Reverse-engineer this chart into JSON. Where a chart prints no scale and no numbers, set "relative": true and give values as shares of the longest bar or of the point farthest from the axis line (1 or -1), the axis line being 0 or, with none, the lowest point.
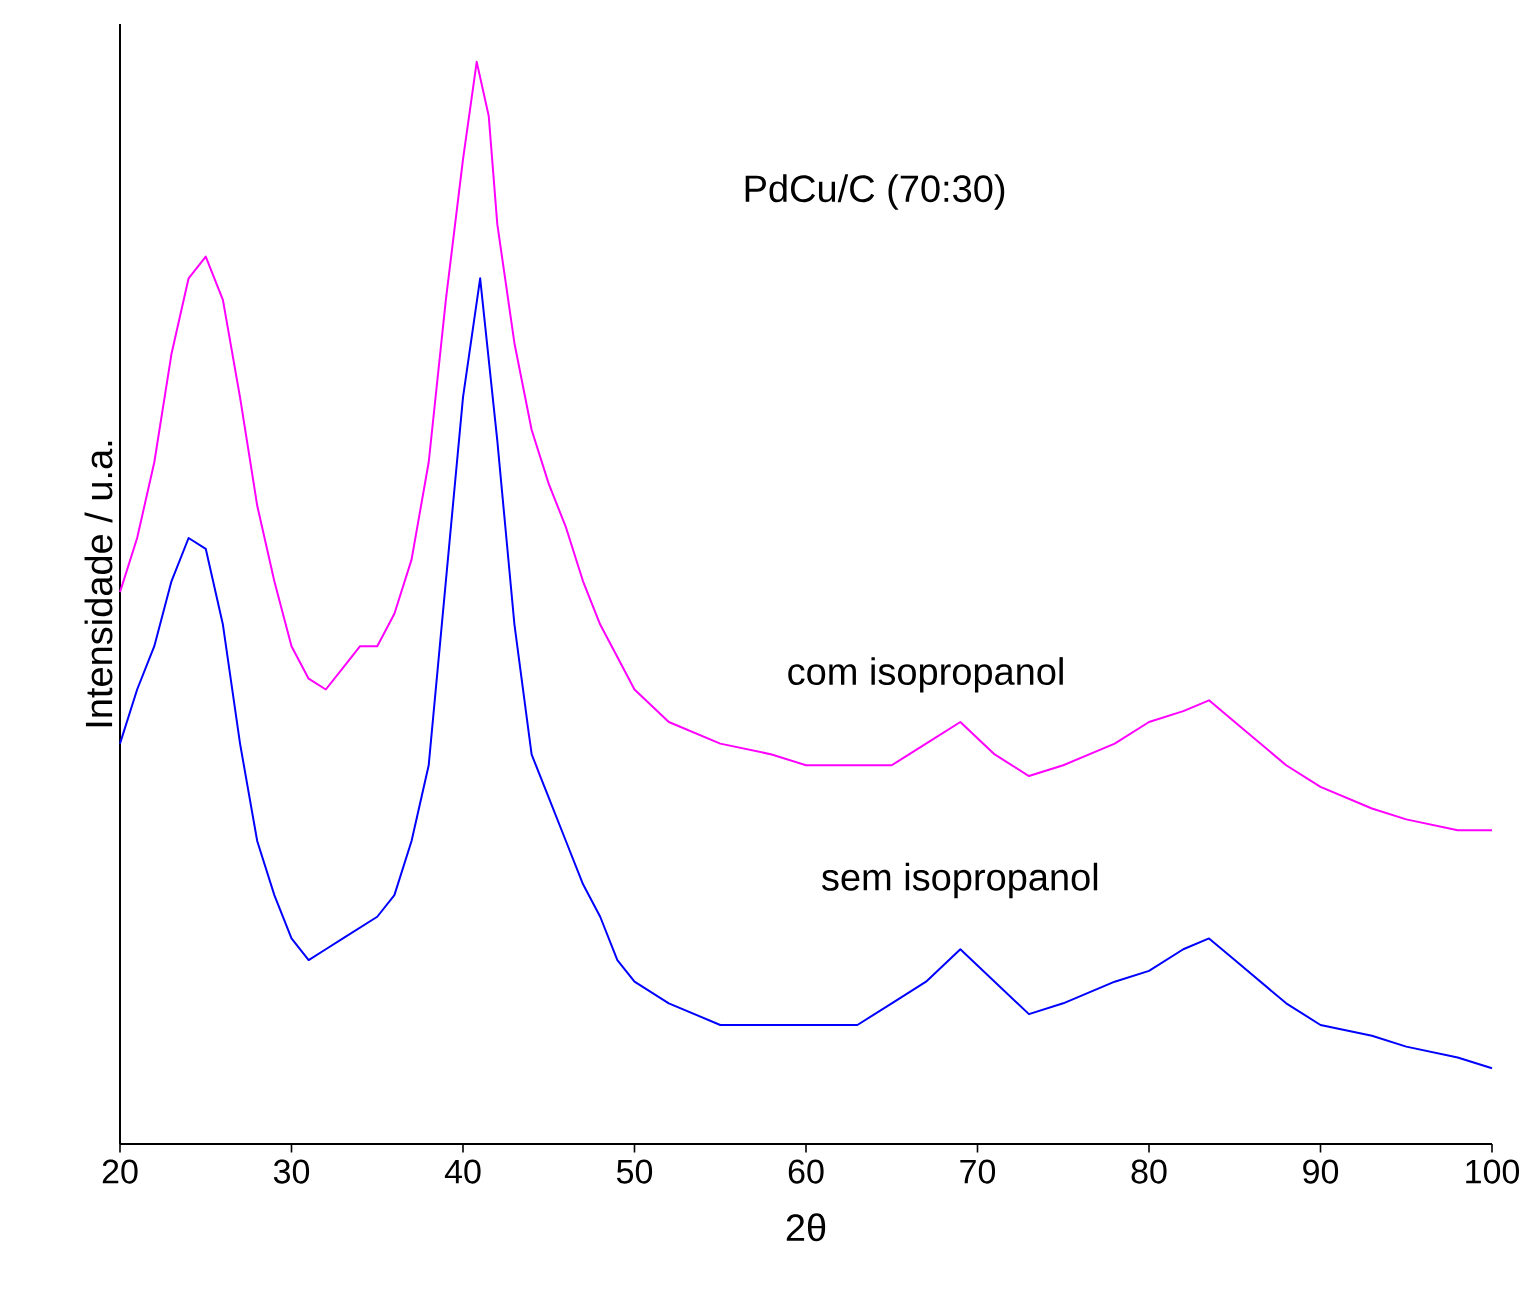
{
  "chart_data": {
    "type": "line",
    "relative": true,
    "xlabel": "2θ",
    "ylabel": "Intensidade / u.a.",
    "annotations": [
      "PdCu/C (70:30)"
    ],
    "xlim": [
      20,
      100
    ],
    "xticks": [
      20,
      30,
      40,
      50,
      60,
      70,
      80,
      90,
      100
    ],
    "series": [
      {
        "name": "com isopropanol",
        "color": "#ff00ff",
        "x": [
          20,
          21,
          22,
          23,
          24,
          25,
          26,
          27,
          28,
          29,
          30,
          31,
          32,
          33,
          34,
          35,
          36,
          37,
          38,
          39,
          40,
          40.8,
          41.5,
          42,
          43,
          44,
          45,
          46,
          47,
          48,
          49,
          50,
          52,
          55,
          58,
          60,
          63,
          65,
          67,
          69,
          71,
          73,
          75,
          78,
          80,
          82,
          83.5,
          85,
          88,
          90,
          93,
          95,
          98,
          100
        ],
        "values": [
          0.51,
          0.56,
          0.63,
          0.73,
          0.8,
          0.82,
          0.78,
          0.69,
          0.59,
          0.52,
          0.46,
          0.43,
          0.42,
          0.44,
          0.46,
          0.46,
          0.49,
          0.54,
          0.63,
          0.78,
          0.91,
          1.0,
          0.95,
          0.85,
          0.74,
          0.66,
          0.61,
          0.57,
          0.52,
          0.48,
          0.45,
          0.42,
          0.39,
          0.37,
          0.36,
          0.35,
          0.35,
          0.35,
          0.37,
          0.39,
          0.36,
          0.34,
          0.35,
          0.37,
          0.39,
          0.4,
          0.41,
          0.39,
          0.35,
          0.33,
          0.31,
          0.3,
          0.29,
          0.29
        ]
      },
      {
        "name": "sem isopropanol",
        "color": "#0000ff",
        "x": [
          20,
          21,
          22,
          23,
          24,
          25,
          26,
          27,
          28,
          29,
          30,
          31,
          32,
          33,
          34,
          35,
          36,
          37,
          38,
          39,
          40,
          41,
          42,
          43,
          44,
          45,
          46,
          47,
          48,
          49,
          50,
          52,
          55,
          58,
          60,
          63,
          65,
          67,
          69,
          71,
          73,
          75,
          78,
          80,
          82,
          83.5,
          85,
          88,
          90,
          93,
          95,
          98,
          100
        ],
        "values": [
          0.37,
          0.42,
          0.46,
          0.52,
          0.56,
          0.55,
          0.48,
          0.37,
          0.28,
          0.23,
          0.19,
          0.17,
          0.18,
          0.19,
          0.2,
          0.21,
          0.23,
          0.28,
          0.35,
          0.52,
          0.69,
          0.8,
          0.65,
          0.48,
          0.36,
          0.32,
          0.28,
          0.24,
          0.21,
          0.17,
          0.15,
          0.13,
          0.11,
          0.11,
          0.11,
          0.11,
          0.13,
          0.15,
          0.18,
          0.15,
          0.12,
          0.13,
          0.15,
          0.16,
          0.18,
          0.19,
          0.17,
          0.13,
          0.11,
          0.1,
          0.09,
          0.08,
          0.07
        ]
      }
    ]
  }
}
